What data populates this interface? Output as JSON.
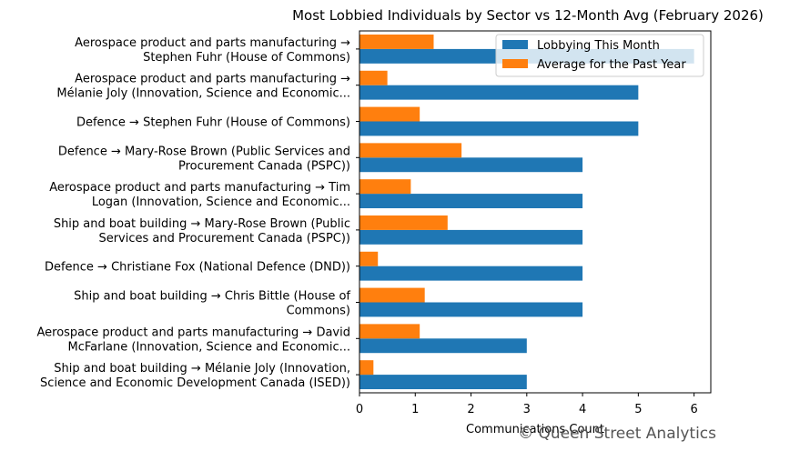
{
  "chart_data": {
    "type": "bar",
    "orientation": "horizontal",
    "title": "Most Lobbied Individuals by Sector vs 12-Month Avg (February 2026)",
    "xlabel": "Communications Count",
    "ylabel": "",
    "xlim": [
      0,
      6.3
    ],
    "xticks": [
      0,
      1,
      2,
      3,
      4,
      5,
      6
    ],
    "grid": false,
    "legend_position": "top-right",
    "categories": [
      [
        "Aerospace product and parts manufacturing →",
        "Stephen Fuhr (House of Commons)"
      ],
      [
        "Aerospace product and parts manufacturing →",
        "Mélanie Joly (Innovation, Science and Economic..."
      ],
      [
        "Defence → Stephen Fuhr (House of Commons)"
      ],
      [
        "Defence → Mary-Rose Brown (Public Services and",
        "Procurement Canada (PSPC))"
      ],
      [
        "Aerospace product and parts manufacturing → Tim",
        "Logan (Innovation, Science and Economic..."
      ],
      [
        "Ship and boat building → Mary-Rose Brown (Public",
        "Services and Procurement Canada (PSPC))"
      ],
      [
        "Defence → Christiane Fox (National Defence (DND))"
      ],
      [
        "Ship and boat building → Chris Bittle (House of",
        "Commons)"
      ],
      [
        "Aerospace product and parts manufacturing → David",
        "McFarlane (Innovation, Science and Economic..."
      ],
      [
        "Ship and boat building → Mélanie Joly (Innovation,",
        "Science and Economic Development Canada (ISED))"
      ]
    ],
    "series": [
      {
        "name": "Lobbying This Month",
        "color": "#1f77b4",
        "values": [
          6,
          5,
          5,
          4,
          4,
          4,
          4,
          4,
          3,
          3
        ]
      },
      {
        "name": "Average for the Past Year",
        "color": "#ff7f0e",
        "values": [
          1.33,
          0.5,
          1.08,
          1.83,
          0.92,
          1.58,
          0.33,
          1.17,
          1.08,
          0.25
        ]
      }
    ]
  },
  "watermark": "© Queen Street Analytics"
}
